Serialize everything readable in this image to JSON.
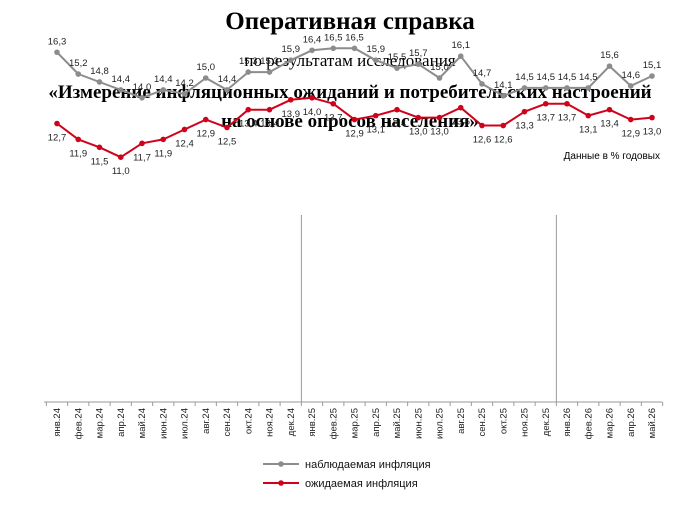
{
  "header": {
    "title": "Оперативная справка",
    "subtitle": "по результатам исследования",
    "heading_line1": "«Измерение инфляционных ожиданий и потребительских настроений",
    "heading_line2": "на основе опросов населения»",
    "units_note": "Данные в % годовых"
  },
  "chart_data": {
    "type": "line",
    "categories": [
      "янв.24",
      "фев.24",
      "мар.24",
      "апр.24",
      "май.24",
      "июн.24",
      "июл.24",
      "авг.24",
      "сен.24",
      "окт.24",
      "ноя.24",
      "дек.24",
      "янв.25",
      "фев.25",
      "мар.25",
      "апр.25",
      "май.25",
      "июн.25",
      "июл.25",
      "авг.25",
      "сен.25",
      "окт.25",
      "ноя.25",
      "дек.25",
      "янв.26",
      "фев.26",
      "мар.26",
      "апр.26",
      "май.26"
    ],
    "series": [
      {
        "name": "наблюдаемая инфляция",
        "color": "#8c8c8c",
        "values": [
          16.3,
          15.2,
          14.8,
          14.4,
          14.0,
          14.4,
          14.2,
          15.0,
          14.4,
          15.3,
          15.3,
          15.9,
          16.4,
          16.5,
          16.5,
          15.9,
          15.5,
          15.7,
          15.0,
          16.1,
          14.7,
          14.1,
          14.5,
          14.5,
          14.5,
          14.5,
          15.6,
          14.6,
          15.1
        ],
        "labels": [
          "16,3",
          "15,2",
          "14,8",
          "14,4",
          "14,0",
          "14,4",
          "14,2",
          "15,0",
          "14,4",
          "15,3",
          "15,3",
          "15,9",
          "16,4",
          "16,5",
          "16,5",
          "15,9",
          "15,5",
          "15,7",
          "15,0",
          "16,1",
          "14,7",
          "14,1",
          "14,5",
          "14,5",
          "14,5",
          "14,5",
          "15,6",
          "14,6",
          "15,1"
        ]
      },
      {
        "name": "ожидаемая инфляция",
        "color": "#d0021b",
        "values": [
          12.7,
          11.9,
          11.5,
          11.0,
          11.7,
          11.9,
          12.4,
          12.9,
          12.5,
          13.4,
          13.4,
          13.9,
          14.0,
          13.7,
          12.9,
          13.1,
          13.4,
          13.0,
          13.0,
          13.5,
          12.6,
          12.6,
          13.3,
          13.7,
          13.7,
          13.1,
          13.4,
          12.9,
          13.0
        ],
        "labels": [
          "12,7",
          "11,9",
          "11,5",
          "11,0",
          "11,7",
          "11,9",
          "12,4",
          "12,9",
          "12,5",
          "13,4",
          "13,4",
          "13,9",
          "14,0",
          "13,7",
          "12,9",
          "13,1",
          "13,4",
          "13,0",
          "13,0",
          "13,5",
          "12,6",
          "12,6",
          "13,3",
          "13,7",
          "13,7",
          "13,1",
          "13,4",
          "12,9",
          "13,0"
        ]
      }
    ],
    "year_dividers_after": [
      "дек.24",
      "дек.25"
    ],
    "legend_position": "bottom-center",
    "grid": false
  }
}
